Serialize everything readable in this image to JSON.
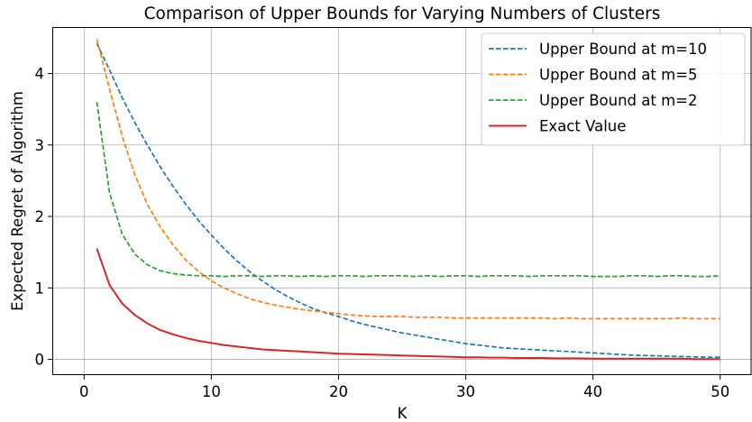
{
  "chart_data": {
    "type": "line",
    "title": "Comparison of Upper Bounds for Varying Numbers of Clusters",
    "xlabel": "K",
    "ylabel": "Expected Regret of Algorithm",
    "xlim": [
      -2.5,
      52.5
    ],
    "ylim": [
      -0.22,
      4.65
    ],
    "xticks": [
      0,
      10,
      20,
      30,
      40,
      50
    ],
    "yticks": [
      0,
      1,
      2,
      3,
      4
    ],
    "grid": true,
    "legend_position": "top-right",
    "x": [
      1,
      2,
      3,
      4,
      5,
      6,
      7,
      8,
      9,
      10,
      11,
      12,
      13,
      14,
      15,
      16,
      17,
      18,
      19,
      20,
      21,
      22,
      23,
      24,
      25,
      26,
      27,
      28,
      29,
      30,
      31,
      32,
      33,
      34,
      35,
      36,
      37,
      38,
      39,
      40,
      41,
      42,
      43,
      44,
      45,
      46,
      47,
      48,
      49,
      50
    ],
    "series": [
      {
        "name": "Upper Bound at m=10",
        "color": "#1f77b4",
        "dash": true,
        "values": [
          4.42,
          4.05,
          3.66,
          3.31,
          2.99,
          2.69,
          2.42,
          2.17,
          1.94,
          1.74,
          1.55,
          1.38,
          1.23,
          1.1,
          0.98,
          0.88,
          0.79,
          0.71,
          0.65,
          0.6,
          0.54,
          0.49,
          0.45,
          0.41,
          0.37,
          0.34,
          0.31,
          0.28,
          0.25,
          0.22,
          0.2,
          0.18,
          0.16,
          0.15,
          0.14,
          0.13,
          0.12,
          0.11,
          0.1,
          0.09,
          0.08,
          0.07,
          0.06,
          0.055,
          0.05,
          0.045,
          0.04,
          0.035,
          0.03,
          0.03
        ]
      },
      {
        "name": "Upper Bound at m=5",
        "color": "#ff7f0e",
        "dash": true,
        "values": [
          4.48,
          3.78,
          3.12,
          2.58,
          2.16,
          1.85,
          1.6,
          1.39,
          1.23,
          1.1,
          1.0,
          0.92,
          0.85,
          0.8,
          0.76,
          0.73,
          0.7,
          0.68,
          0.66,
          0.64,
          0.62,
          0.61,
          0.6,
          0.6,
          0.6,
          0.59,
          0.59,
          0.59,
          0.58,
          0.58,
          0.58,
          0.58,
          0.58,
          0.58,
          0.58,
          0.58,
          0.57,
          0.58,
          0.57,
          0.57,
          0.57,
          0.57,
          0.57,
          0.57,
          0.57,
          0.57,
          0.58,
          0.57,
          0.57,
          0.57
        ]
      },
      {
        "name": "Upper Bound at m=2",
        "color": "#2ca02c",
        "dash": true,
        "values": [
          3.6,
          2.33,
          1.75,
          1.47,
          1.32,
          1.24,
          1.2,
          1.18,
          1.17,
          1.17,
          1.16,
          1.17,
          1.17,
          1.16,
          1.17,
          1.17,
          1.16,
          1.17,
          1.16,
          1.17,
          1.17,
          1.16,
          1.17,
          1.17,
          1.17,
          1.16,
          1.17,
          1.16,
          1.17,
          1.17,
          1.16,
          1.17,
          1.17,
          1.17,
          1.16,
          1.17,
          1.17,
          1.17,
          1.17,
          1.16,
          1.16,
          1.16,
          1.17,
          1.17,
          1.16,
          1.17,
          1.17,
          1.16,
          1.16,
          1.17
        ]
      },
      {
        "name": "Exact Value",
        "color": "#d62728",
        "dash": false,
        "values": [
          1.55,
          1.04,
          0.78,
          0.62,
          0.5,
          0.41,
          0.35,
          0.3,
          0.26,
          0.23,
          0.2,
          0.18,
          0.16,
          0.14,
          0.13,
          0.12,
          0.11,
          0.1,
          0.09,
          0.08,
          0.075,
          0.07,
          0.065,
          0.06,
          0.055,
          0.05,
          0.045,
          0.04,
          0.035,
          0.03,
          0.03,
          0.025,
          0.025,
          0.02,
          0.02,
          0.02,
          0.015,
          0.015,
          0.015,
          0.01,
          0.01,
          0.01,
          0.01,
          0.01,
          0.01,
          0.01,
          0.01,
          0.005,
          0.005,
          0.005
        ]
      }
    ]
  }
}
